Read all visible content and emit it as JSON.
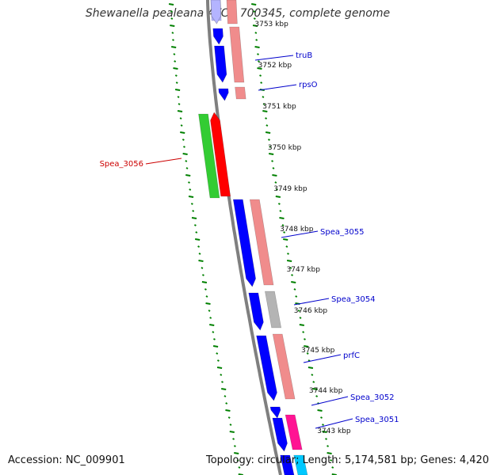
{
  "title": "Shewanella pealeana ATCC 700345, complete genome",
  "footer": {
    "accession": "Accession: NC_009901",
    "summary": "Topology: circular; Length: 5,174,581 bp; Genes: 4,420"
  },
  "colors": {
    "cds_forward": "#0000ff",
    "cds_reverse": "#ff0000",
    "green": "#33cc33",
    "pink": "#f08c8c",
    "gray": "#b4b4b4",
    "magenta": "#ff1493",
    "cyan": "#00c8ff",
    "lavender": "#b4b4ff",
    "label_blue": "#0000cc",
    "label_red": "#cc0000",
    "tick_green": "#008000"
  },
  "kbp_labels": [
    "3753 kbp",
    "3752 kbp",
    "3751 kbp",
    "3750 kbp",
    "3749 kbp",
    "3748 kbp",
    "3747 kbp",
    "3746 kbp",
    "3745 kbp",
    "3744 kbp",
    "3743 kbp"
  ],
  "gene_labels": [
    {
      "id": "truB",
      "text": "truB",
      "color": "blue"
    },
    {
      "id": "rpsO",
      "text": "rpsO",
      "color": "blue"
    },
    {
      "id": "spea3056",
      "text": "Spea_3056",
      "color": "red"
    },
    {
      "id": "spea3055",
      "text": "Spea_3055",
      "color": "blue"
    },
    {
      "id": "spea3054",
      "text": "Spea_3054",
      "color": "blue"
    },
    {
      "id": "prfC",
      "text": "prfC",
      "color": "blue"
    },
    {
      "id": "spea3052",
      "text": "Spea_3052",
      "color": "blue"
    },
    {
      "id": "spea3051",
      "text": "Spea_3051",
      "color": "blue"
    }
  ]
}
